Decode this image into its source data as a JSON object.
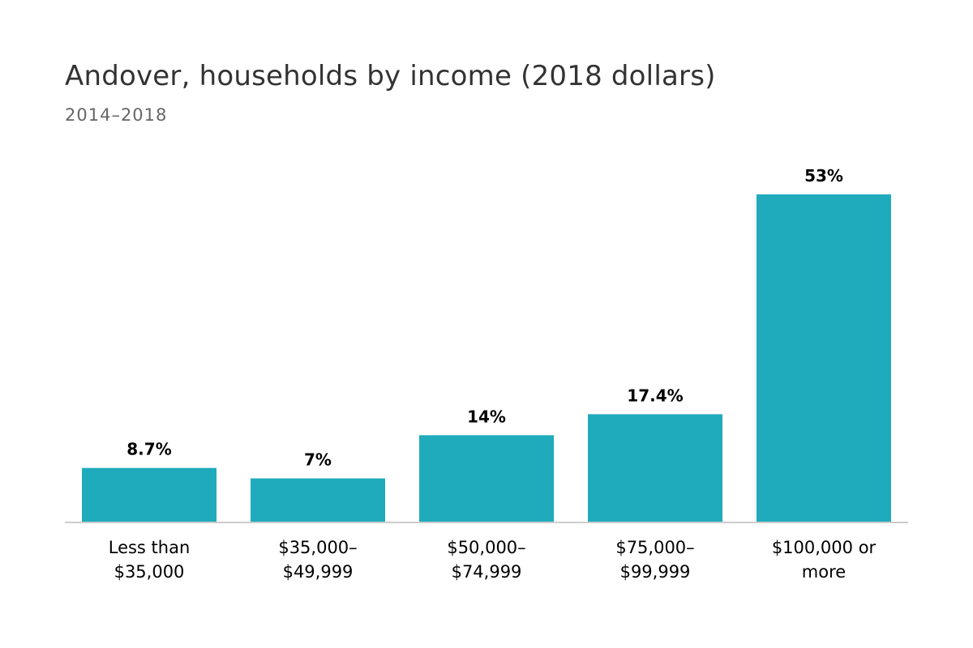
{
  "title": "Andover, households by income (2018 dollars)",
  "subtitle": "2014–2018",
  "colors": {
    "bar": "#20abbc",
    "axis": "#cccccc",
    "label": "#000000",
    "title": "#333333",
    "subtitle": "#666666"
  },
  "chart_data": {
    "type": "bar",
    "title": "Andover, households by income (2018 dollars)",
    "subtitle": "2014–2018",
    "xlabel": "",
    "ylabel": "",
    "ylim": [
      0,
      53
    ],
    "grid": false,
    "legend": "none",
    "categories": [
      [
        "Less than",
        "$35,000"
      ],
      [
        "$35,000–",
        "$49,999"
      ],
      [
        "$50,000–",
        "$74,999"
      ],
      [
        "$75,000–",
        "$99,999"
      ],
      [
        "$100,000 or",
        "more"
      ]
    ],
    "values": [
      8.7,
      7,
      14,
      17.4,
      53
    ],
    "data_labels": [
      "8.7%",
      "7%",
      "14%",
      "17.4%",
      "53%"
    ]
  }
}
